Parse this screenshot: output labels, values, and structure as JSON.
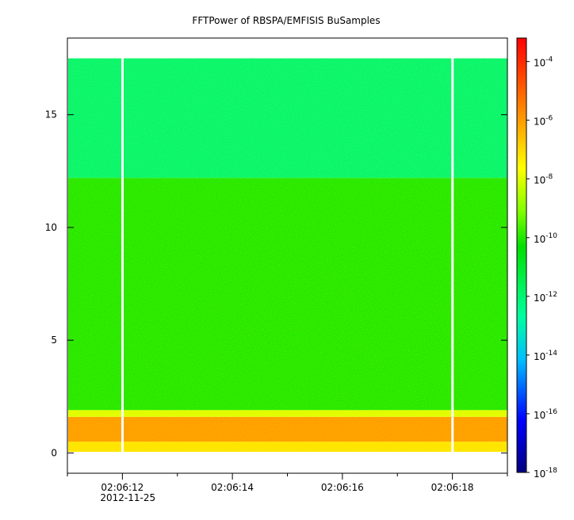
{
  "chart_data": {
    "type": "heatmap",
    "title": "FFTPower of RBSPA/EMFISIS  BuSamples",
    "xlabel": "",
    "ylabel": "",
    "x_start": "02:06:11",
    "x_end": "02:06:19",
    "x_date": "2012-11-25",
    "x_ticks": [
      {
        "t": "02:06:12",
        "label": "02:06:12",
        "sublabel": "2012-11-25"
      },
      {
        "t": "02:06:14",
        "label": "02:06:14",
        "sublabel": ""
      },
      {
        "t": "02:06:16",
        "label": "02:06:16",
        "sublabel": ""
      },
      {
        "t": "02:06:18",
        "label": "02:06:18",
        "sublabel": ""
      }
    ],
    "x_minor_ticks": [
      "02:06:11",
      "02:06:13",
      "02:06:15",
      "02:06:17",
      "02:06:19"
    ],
    "ylim": [
      -0.9,
      18.4
    ],
    "y_ticks": [
      {
        "value": 0,
        "label": "0"
      },
      {
        "value": 5,
        "label": "5"
      },
      {
        "value": 10,
        "label": "10"
      },
      {
        "value": 15,
        "label": "15"
      }
    ],
    "data_gaps": [
      {
        "start": "02:06:11.98",
        "end": "02:06:12.02"
      },
      {
        "start": "02:06:17.98",
        "end": "02:06:18.02"
      }
    ],
    "bands": [
      {
        "y0": 0.05,
        "y1": 0.5,
        "level_exp": -7.2
      },
      {
        "y0": 0.5,
        "y1": 1.6,
        "level_exp": -6.0
      },
      {
        "y0": 1.6,
        "y1": 1.9,
        "level_exp": -8.0
      },
      {
        "y0": 1.9,
        "y1": 12.2,
        "level_exp": -10.0
      },
      {
        "y0": 12.2,
        "y1": 17.5,
        "level_exp": -12.0
      }
    ],
    "colorbar": {
      "scale": "log",
      "range_exp": [
        -18,
        -3.2
      ],
      "tick_base": "10",
      "ticks": [
        {
          "exp": -4,
          "label": "-4"
        },
        {
          "exp": -6,
          "label": "-6"
        },
        {
          "exp": -8,
          "label": "-8"
        },
        {
          "exp": -10,
          "label": "-10"
        },
        {
          "exp": -12,
          "label": "-12"
        },
        {
          "exp": -14,
          "label": "-14"
        },
        {
          "exp": -16,
          "label": "-16"
        },
        {
          "exp": -18,
          "label": "-18"
        }
      ],
      "colors": [
        "#00007f",
        "#0000ff",
        "#00bfff",
        "#00ff9f",
        "#00e000",
        "#7fff00",
        "#ffff00",
        "#ffa500",
        "#ff5000",
        "#ff0000"
      ]
    }
  }
}
